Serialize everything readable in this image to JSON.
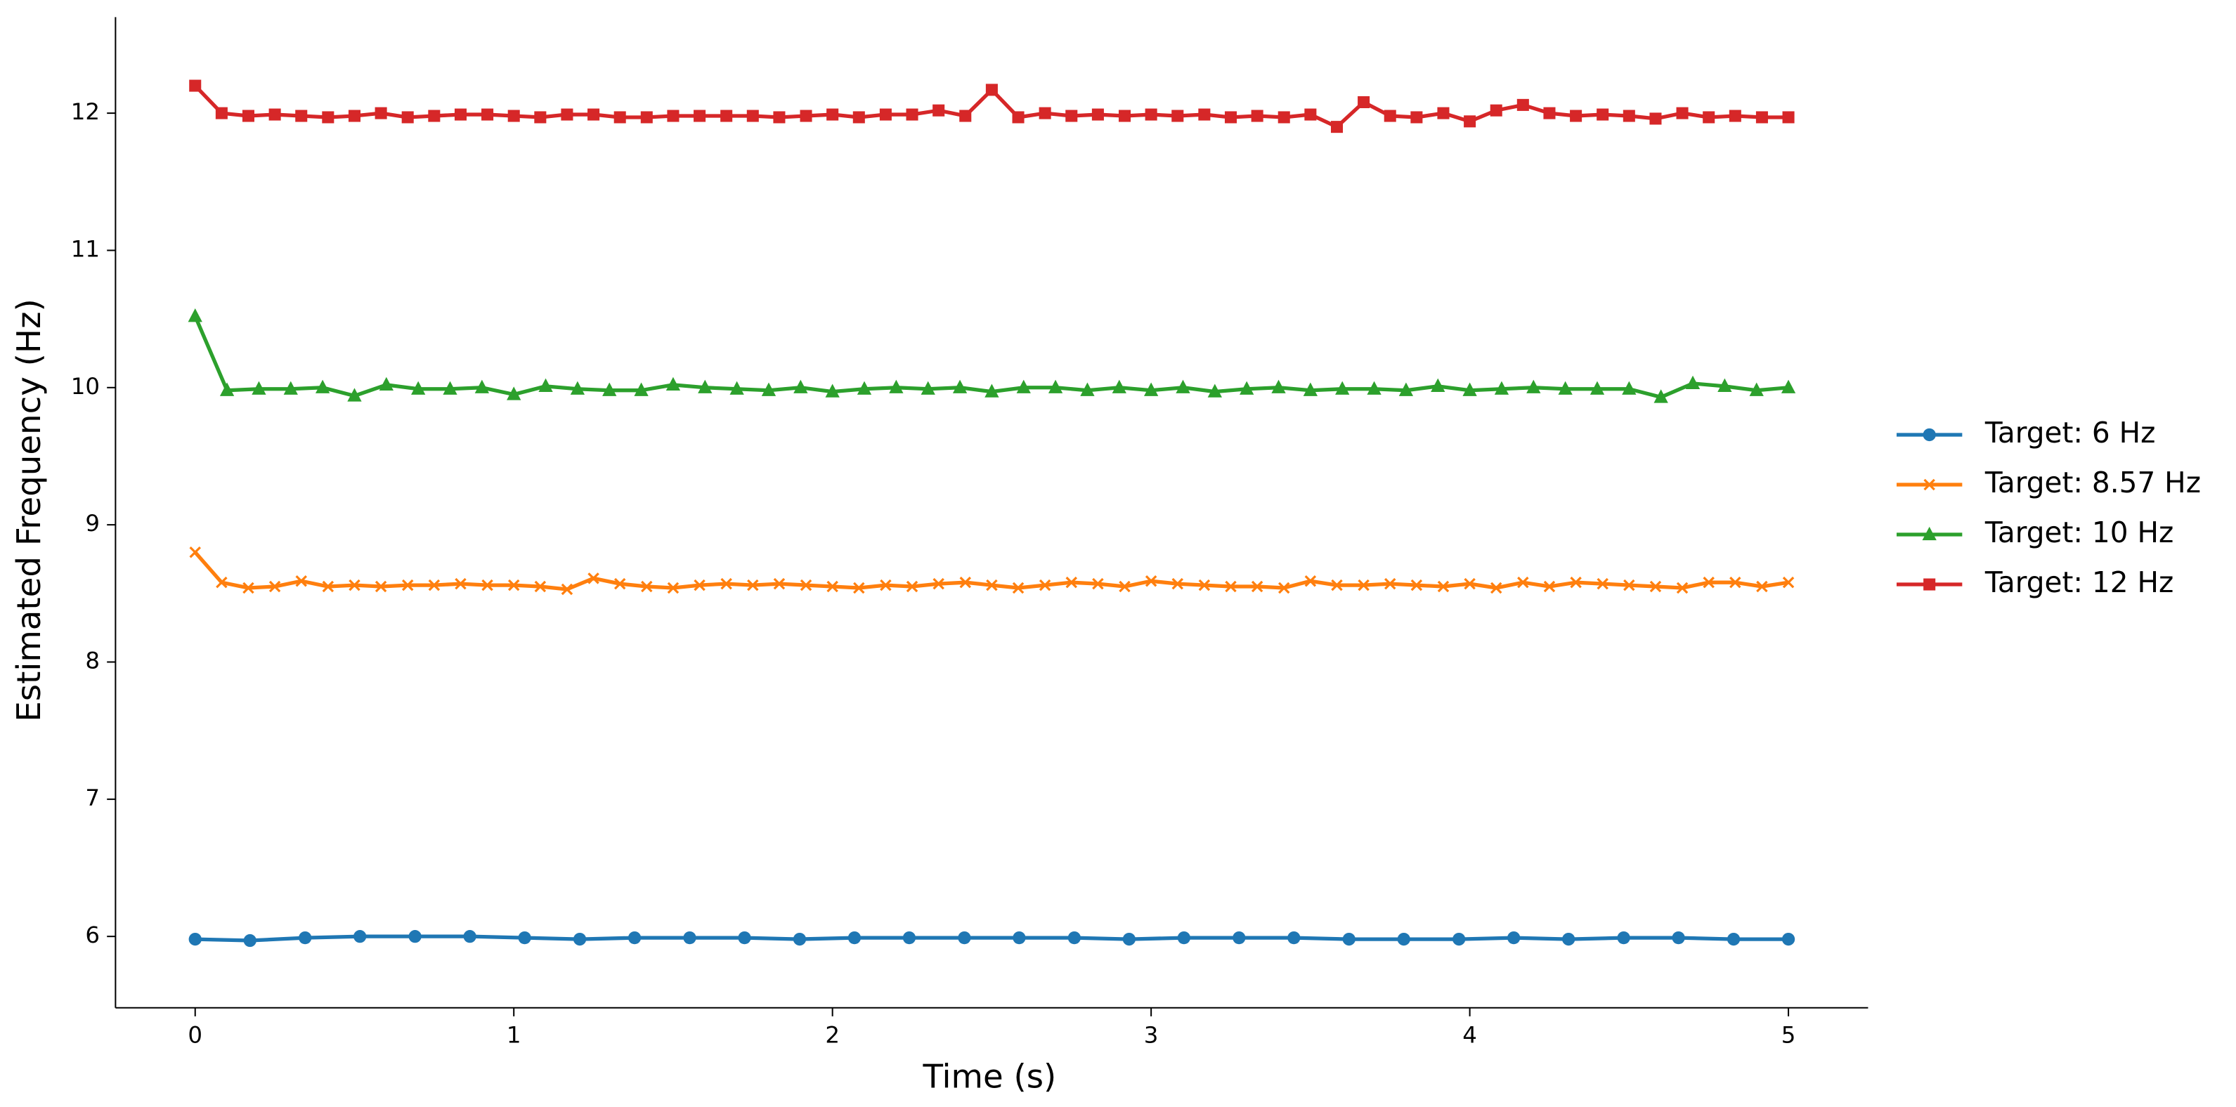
{
  "chart_data": {
    "type": "line",
    "xlabel": "Time (s)",
    "ylabel": "Estimated Frequency (Hz)",
    "xlim": [
      -0.25,
      5.25
    ],
    "ylim": [
      5.48,
      12.7
    ],
    "xticks": [
      0,
      1,
      2,
      3,
      4,
      5
    ],
    "yticks": [
      6,
      7,
      8,
      9,
      10,
      11,
      12
    ],
    "legend": "outside-right",
    "series": [
      {
        "name": "Target: 6 Hz",
        "color": "#1f77b4",
        "marker": "circle",
        "x": [
          0,
          0.172,
          0.345,
          0.517,
          0.69,
          0.862,
          1.034,
          1.207,
          1.379,
          1.552,
          1.724,
          1.897,
          2.069,
          2.241,
          2.414,
          2.586,
          2.759,
          2.931,
          3.103,
          3.276,
          3.448,
          3.621,
          3.793,
          3.966,
          4.138,
          4.31,
          4.483,
          4.655,
          4.828,
          5
        ],
        "values": [
          5.98,
          5.97,
          5.99,
          6.0,
          6.0,
          6.0,
          5.99,
          5.98,
          5.99,
          5.99,
          5.99,
          5.98,
          5.99,
          5.99,
          5.99,
          5.99,
          5.99,
          5.98,
          5.99,
          5.99,
          5.99,
          5.98,
          5.98,
          5.98,
          5.99,
          5.98,
          5.99,
          5.99,
          5.98,
          5.98
        ]
      },
      {
        "name": "Target: 8.57 Hz",
        "color": "#ff7f0e",
        "marker": "x",
        "x": [
          0,
          0.083,
          0.167,
          0.25,
          0.333,
          0.417,
          0.5,
          0.583,
          0.667,
          0.75,
          0.833,
          0.917,
          1,
          1.083,
          1.167,
          1.25,
          1.333,
          1.417,
          1.5,
          1.583,
          1.667,
          1.75,
          1.833,
          1.917,
          2,
          2.083,
          2.167,
          2.25,
          2.333,
          2.417,
          2.5,
          2.583,
          2.667,
          2.75,
          2.833,
          2.917,
          3,
          3.083,
          3.167,
          3.25,
          3.333,
          3.417,
          3.5,
          3.583,
          3.667,
          3.75,
          3.833,
          3.917,
          4,
          4.083,
          4.167,
          4.25,
          4.333,
          4.417,
          4.5,
          4.583,
          4.667,
          4.75,
          4.833,
          4.917,
          5
        ],
        "values": [
          8.8,
          8.58,
          8.54,
          8.55,
          8.59,
          8.55,
          8.56,
          8.55,
          8.56,
          8.56,
          8.57,
          8.56,
          8.56,
          8.55,
          8.53,
          8.61,
          8.57,
          8.55,
          8.54,
          8.56,
          8.57,
          8.56,
          8.57,
          8.56,
          8.55,
          8.54,
          8.56,
          8.55,
          8.57,
          8.58,
          8.56,
          8.54,
          8.56,
          8.58,
          8.57,
          8.55,
          8.59,
          8.57,
          8.56,
          8.55,
          8.55,
          8.54,
          8.59,
          8.56,
          8.56,
          8.57,
          8.56,
          8.55,
          8.57,
          8.54,
          8.58,
          8.55,
          8.58,
          8.57,
          8.56,
          8.55,
          8.54,
          8.58,
          8.58,
          8.55,
          8.58
        ]
      },
      {
        "name": "Target: 10 Hz",
        "color": "#2ca02c",
        "marker": "triangle",
        "x": [
          0,
          0.1,
          0.2,
          0.3,
          0.4,
          0.5,
          0.6,
          0.7,
          0.8,
          0.9,
          1,
          1.1,
          1.2,
          1.3,
          1.4,
          1.5,
          1.6,
          1.7,
          1.8,
          1.9,
          2,
          2.1,
          2.2,
          2.3,
          2.4,
          2.5,
          2.6,
          2.7,
          2.8,
          2.9,
          3,
          3.1,
          3.2,
          3.3,
          3.4,
          3.5,
          3.6,
          3.7,
          3.8,
          3.9,
          4,
          4.1,
          4.2,
          4.3,
          4.4,
          4.5,
          4.6,
          4.7,
          4.8,
          4.9,
          5
        ],
        "values": [
          10.52,
          9.98,
          9.99,
          9.99,
          10.0,
          9.94,
          10.02,
          9.99,
          9.99,
          10.0,
          9.95,
          10.01,
          9.99,
          9.98,
          9.98,
          10.02,
          10.0,
          9.99,
          9.98,
          10.0,
          9.97,
          9.99,
          10.0,
          9.99,
          10.0,
          9.97,
          10.0,
          10.0,
          9.98,
          10.0,
          9.98,
          10.0,
          9.97,
          9.99,
          10.0,
          9.98,
          9.99,
          9.99,
          9.98,
          10.01,
          9.98,
          9.99,
          10.0,
          9.99,
          9.99,
          9.99,
          9.93,
          10.03,
          10.01,
          9.98,
          10.0
        ]
      },
      {
        "name": "Target: 12 Hz",
        "color": "#d62728",
        "marker": "square",
        "x": [
          0,
          0.083,
          0.167,
          0.25,
          0.333,
          0.417,
          0.5,
          0.583,
          0.667,
          0.75,
          0.833,
          0.917,
          1,
          1.083,
          1.167,
          1.25,
          1.333,
          1.417,
          1.5,
          1.583,
          1.667,
          1.75,
          1.833,
          1.917,
          2,
          2.083,
          2.167,
          2.25,
          2.333,
          2.417,
          2.5,
          2.583,
          2.667,
          2.75,
          2.833,
          2.917,
          3,
          3.083,
          3.167,
          3.25,
          3.333,
          3.417,
          3.5,
          3.583,
          3.667,
          3.75,
          3.833,
          3.917,
          4,
          4.083,
          4.167,
          4.25,
          4.333,
          4.417,
          4.5,
          4.583,
          4.667,
          4.75,
          4.833,
          4.917,
          5
        ],
        "values": [
          12.2,
          12.0,
          11.98,
          11.99,
          11.98,
          11.97,
          11.98,
          12.0,
          11.97,
          11.98,
          11.99,
          11.99,
          11.98,
          11.97,
          11.99,
          11.99,
          11.97,
          11.97,
          11.98,
          11.98,
          11.98,
          11.98,
          11.97,
          11.98,
          11.99,
          11.97,
          11.99,
          11.99,
          12.02,
          11.98,
          12.17,
          11.97,
          12.0,
          11.98,
          11.99,
          11.98,
          11.99,
          11.98,
          11.99,
          11.97,
          11.98,
          11.97,
          11.99,
          11.9,
          12.08,
          11.98,
          11.97,
          12.0,
          11.94,
          12.02,
          12.06,
          12.0,
          11.98,
          11.99,
          11.98,
          11.96,
          12.0,
          11.97,
          11.98,
          11.97,
          11.97
        ]
      }
    ]
  }
}
